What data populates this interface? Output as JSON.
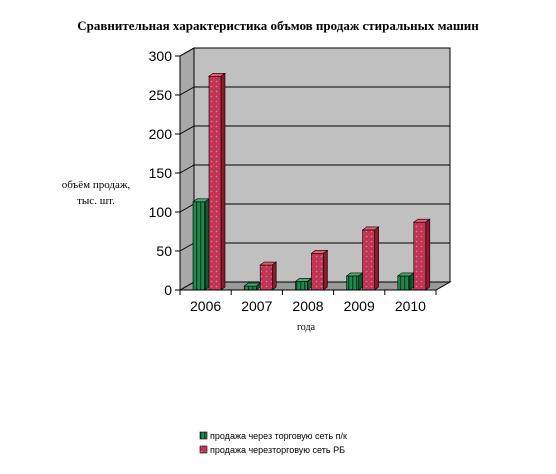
{
  "chart_data": {
    "type": "bar",
    "title": "Сравнительная характеристика объмов продаж стиральных машин",
    "ylabel_line1": "объём продаж,",
    "ylabel_line2": "тыс. шт.",
    "xlabel": "года",
    "categories": [
      "2006",
      "2007",
      "2008",
      "2009",
      "2010"
    ],
    "ylim": [
      0,
      300
    ],
    "yticks": [
      0,
      50,
      100,
      150,
      200,
      250,
      300
    ],
    "grid": true,
    "legend_position": "bottom",
    "series": [
      {
        "name": "продажа через торговую сеть п/к",
        "values": [
          113,
          5,
          11,
          18,
          18
        ],
        "color": "#1f8a4c"
      },
      {
        "name": "продажа черезторговую сеть РБ",
        "values": [
          274,
          32,
          47,
          77,
          87
        ],
        "color": "#d42a44"
      }
    ]
  }
}
